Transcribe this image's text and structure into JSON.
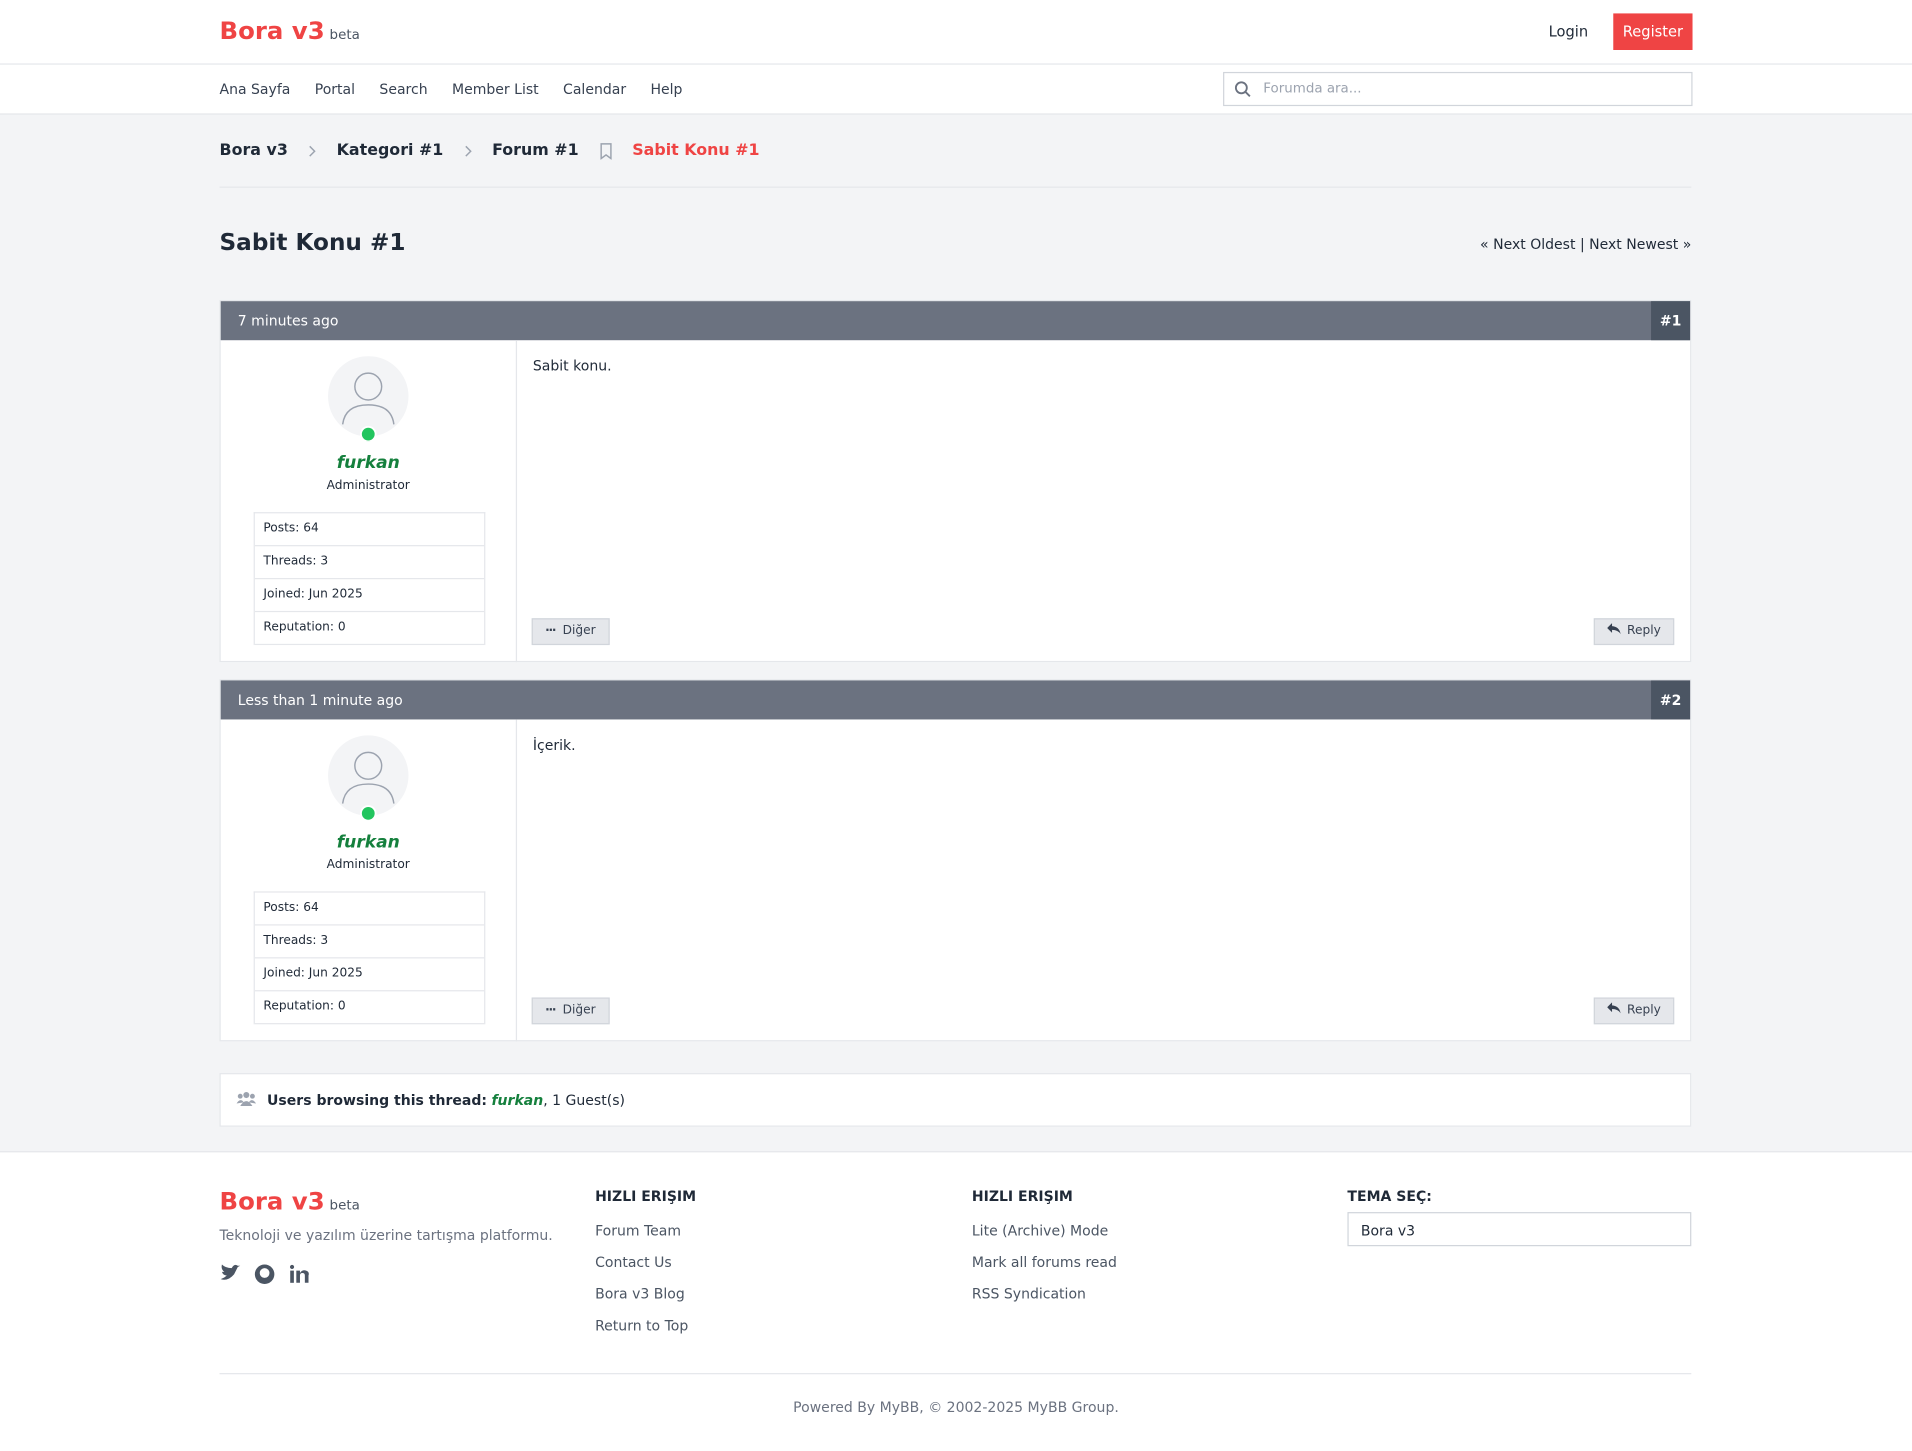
{
  "header": {
    "brand": "Bora v3",
    "badge": "beta",
    "login": "Login",
    "register": "Register"
  },
  "nav": {
    "items": [
      "Ana Sayfa",
      "Portal",
      "Search",
      "Member List",
      "Calendar",
      "Help"
    ],
    "search_placeholder": "Forumda ara..."
  },
  "breadcrumb": [
    "Bora v3",
    "Kategori #1",
    "Forum #1",
    "Sabit Konu #1"
  ],
  "thread": {
    "title": "Sabit Konu #1",
    "prev": "« Next Oldest",
    "separator": "|",
    "next": "Next Newest »"
  },
  "posts": [
    {
      "time": "7 minutes ago",
      "number": "#1",
      "author": "furkan",
      "role": "Administrator",
      "stats": [
        "Posts: 64",
        "Threads: 3",
        "Joined: Jun 2025",
        "Reputation: 0"
      ],
      "content": "Sabit konu.",
      "more": "Diğer",
      "reply": "Reply"
    },
    {
      "time": "Less than 1 minute ago",
      "number": "#2",
      "author": "furkan",
      "role": "Administrator",
      "stats": [
        "Posts: 64",
        "Threads: 3",
        "Joined: Jun 2025",
        "Reputation: 0"
      ],
      "content": "İçerik.",
      "more": "Diğer",
      "reply": "Reply"
    }
  ],
  "browsing": {
    "label": "Users browsing this thread:",
    "user": "furkan",
    "guests": ", 1 Guest(s)"
  },
  "footer": {
    "brand": "Bora v3",
    "badge": "beta",
    "tagline": "Teknoloji ve yazılım üzerine tartışma platformu.",
    "col1": {
      "title": "HIZLI ERIŞIM",
      "links": [
        "Forum Team",
        "Contact Us",
        "Bora v3 Blog",
        "Return to Top"
      ]
    },
    "col2": {
      "title": "HIZLI ERIŞIM",
      "links": [
        "Lite (Archive) Mode",
        "Mark all forums read",
        "RSS Syndication"
      ]
    },
    "theme": {
      "title": "TEMA SEÇ:",
      "selected": "Bora v3"
    },
    "copyright": "Powered By MyBB, © 2002-2025 MyBB Group."
  }
}
